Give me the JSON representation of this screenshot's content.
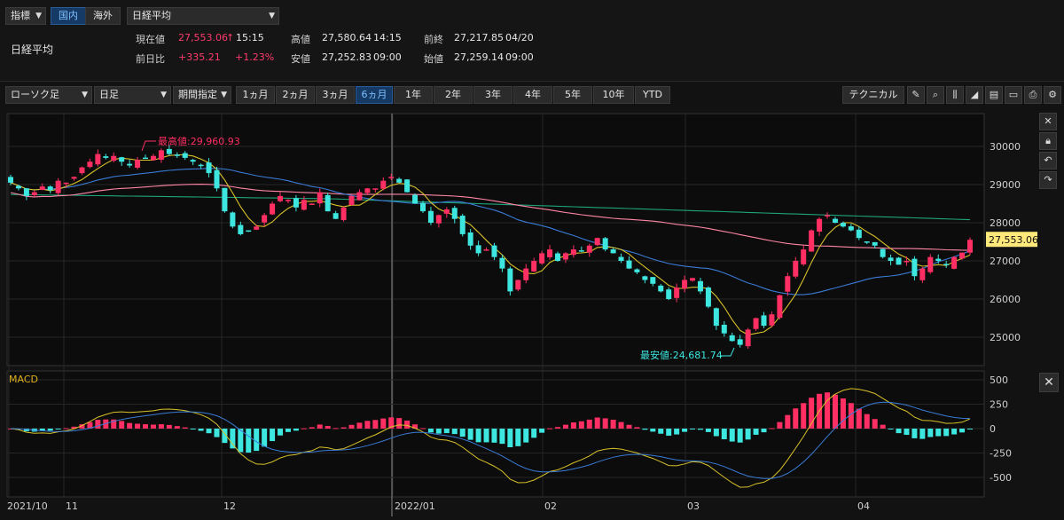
{
  "header": {
    "indicator_select": "指標",
    "tab_domestic": "国内",
    "tab_overseas": "海外",
    "index_select": "日経平均",
    "index_name": "日経平均",
    "current_label": "現在値",
    "current_value": "27,553.06",
    "current_arrow": "↑",
    "current_time": "15:15",
    "change_label": "前日比",
    "change_value": "+335.21",
    "change_pct": "+1.23%",
    "high_label": "高値",
    "high_value": "27,580.64",
    "high_time": "14:15",
    "low_label": "安値",
    "low_value": "27,252.83",
    "low_time": "09:00",
    "prev_close_label": "前終",
    "prev_close_value": "27,217.85",
    "prev_close_date": "04/20",
    "open_label": "始値",
    "open_value": "27,259.14",
    "open_time": "09:00"
  },
  "toolbar": {
    "chart_type": "ローソク足",
    "period_unit": "日足",
    "range_select": "期間指定",
    "ranges": [
      "1ヵ月",
      "2ヵ月",
      "3ヵ月",
      "6ヵ月",
      "1年",
      "2年",
      "3年",
      "4年",
      "5年",
      "10年",
      "YTD"
    ],
    "active_range": "6ヵ月",
    "technical_button": "テクニカル"
  },
  "icons": [
    "pencil-icon",
    "zoom-icon",
    "candle-icon",
    "area-chart-icon",
    "document-icon",
    "folder-icon",
    "print-icon",
    "gear-icon"
  ],
  "chart_data": [
    {
      "type": "candlestick",
      "name": "price",
      "y_ticks": [
        25000,
        26000,
        27000,
        28000,
        29000,
        30000
      ],
      "y_tick_labels": [
        "25000",
        "26000",
        "27000",
        "28000",
        "29000",
        "30000"
      ],
      "last_price_label": "27,553.06",
      "high_annotation": "最高値:29,960.93",
      "low_annotation": "最安値:24,681.74",
      "x_labels": [
        "2021/10",
        "11",
        "12",
        "2022/01",
        "02",
        "03",
        "04"
      ],
      "colors": {
        "up": "#ff2e63",
        "down": "#3ee6e0",
        "ma_short": "#d8c12a",
        "ma_mid": "#3a7bd5",
        "ma_long": "#ff86a6",
        "ma_longest": "#1fa37a"
      },
      "closes": [
        29050,
        28900,
        28700,
        28800,
        28950,
        28850,
        29100,
        29050,
        29200,
        29450,
        29600,
        29800,
        29700,
        29750,
        29600,
        29500,
        29650,
        29700,
        29750,
        29900,
        29800,
        29750,
        29700,
        29600,
        29500,
        29300,
        28900,
        28300,
        27900,
        27700,
        27800,
        27900,
        28200,
        28500,
        28700,
        28600,
        28400,
        28600,
        28500,
        28800,
        28300,
        28100,
        28400,
        28700,
        28800,
        28900,
        28900,
        29100,
        29200,
        29050,
        28800,
        28500,
        28300,
        28000,
        28200,
        28350,
        28100,
        27700,
        27400,
        27200,
        27300,
        27100,
        26800,
        26200,
        26500,
        26800,
        27000,
        27200,
        27300,
        27000,
        27200,
        27300,
        27250,
        27400,
        27600,
        27300,
        27200,
        27000,
        26800,
        26700,
        26500,
        26400,
        26200,
        26000,
        26300,
        26500,
        26550,
        26200,
        25800,
        25300,
        25100,
        24900,
        24800,
        25200,
        25500,
        25300,
        25600,
        26100,
        26600,
        27000,
        27300,
        27800,
        28100,
        28200,
        28000,
        27900,
        27800,
        27600,
        27500,
        27400,
        27100,
        27000,
        26900,
        27000,
        26600,
        26800,
        27100,
        27000,
        26900,
        27100,
        27217,
        27553
      ]
    },
    {
      "type": "bar",
      "name": "MACD",
      "title": "MACD",
      "y_ticks": [
        500,
        250,
        0,
        -250,
        -500
      ],
      "y_tick_labels": [
        "500",
        "250",
        "0",
        "-250",
        "-500"
      ]
    }
  ]
}
